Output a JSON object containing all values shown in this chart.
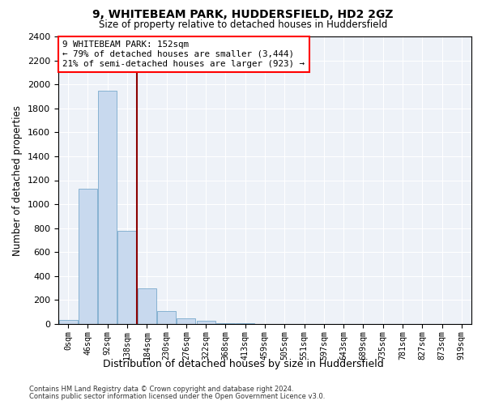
{
  "title": "9, WHITEBEAM PARK, HUDDERSFIELD, HD2 2GZ",
  "subtitle": "Size of property relative to detached houses in Huddersfield",
  "xlabel": "Distribution of detached houses by size in Huddersfield",
  "ylabel": "Number of detached properties",
  "bin_labels": [
    "0sqm",
    "46sqm",
    "92sqm",
    "138sqm",
    "184sqm",
    "230sqm",
    "276sqm",
    "322sqm",
    "368sqm",
    "413sqm",
    "459sqm",
    "505sqm",
    "551sqm",
    "597sqm",
    "643sqm",
    "689sqm",
    "735sqm",
    "781sqm",
    "827sqm",
    "873sqm",
    "919sqm"
  ],
  "bar_heights": [
    35,
    1130,
    1950,
    775,
    300,
    105,
    50,
    25,
    10,
    5,
    3,
    2,
    1,
    1,
    0,
    0,
    0,
    0,
    0,
    0,
    0
  ],
  "bar_color": "#c8d9ee",
  "bar_edge_color": "#7aaacc",
  "ylim": [
    0,
    2400
  ],
  "yticks": [
    0,
    200,
    400,
    600,
    800,
    1000,
    1200,
    1400,
    1600,
    1800,
    2000,
    2200,
    2400
  ],
  "annotation_title": "9 WHITEBEAM PARK: 152sqm",
  "annotation_line1": "← 79% of detached houses are smaller (3,444)",
  "annotation_line2": "21% of semi-detached houses are larger (923) →",
  "footer1": "Contains HM Land Registry data © Crown copyright and database right 2024.",
  "footer2": "Contains public sector information licensed under the Open Government Licence v3.0.",
  "bg_color": "#eef2f8"
}
